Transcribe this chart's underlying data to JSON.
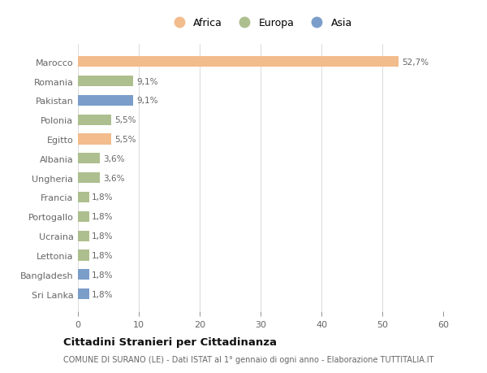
{
  "categories": [
    "Marocco",
    "Romania",
    "Pakistan",
    "Polonia",
    "Egitto",
    "Albania",
    "Ungheria",
    "Francia",
    "Portogallo",
    "Ucraina",
    "Lettonia",
    "Bangladesh",
    "Sri Lanka"
  ],
  "values": [
    52.7,
    9.1,
    9.1,
    5.5,
    5.5,
    3.6,
    3.6,
    1.8,
    1.8,
    1.8,
    1.8,
    1.8,
    1.8
  ],
  "labels": [
    "52,7%",
    "9,1%",
    "9,1%",
    "5,5%",
    "5,5%",
    "3,6%",
    "3,6%",
    "1,8%",
    "1,8%",
    "1,8%",
    "1,8%",
    "1,8%",
    "1,8%"
  ],
  "continents": [
    "Africa",
    "Europa",
    "Asia",
    "Europa",
    "Africa",
    "Europa",
    "Europa",
    "Europa",
    "Europa",
    "Europa",
    "Europa",
    "Asia",
    "Asia"
  ],
  "continent_colors": {
    "Africa": "#F2BC8D",
    "Europa": "#ADBF8E",
    "Asia": "#7B9DC9"
  },
  "legend_order": [
    "Africa",
    "Europa",
    "Asia"
  ],
  "xlim": [
    0,
    60
  ],
  "xticks": [
    0,
    10,
    20,
    30,
    40,
    50,
    60
  ],
  "title": "Cittadini Stranieri per Cittadinanza",
  "subtitle": "COMUNE DI SURANO (LE) - Dati ISTAT al 1° gennaio di ogni anno - Elaborazione TUTTITALIA.IT",
  "bg_color": "#FFFFFF",
  "grid_color": "#DDDDDD",
  "label_color": "#666666",
  "bar_height": 0.55
}
